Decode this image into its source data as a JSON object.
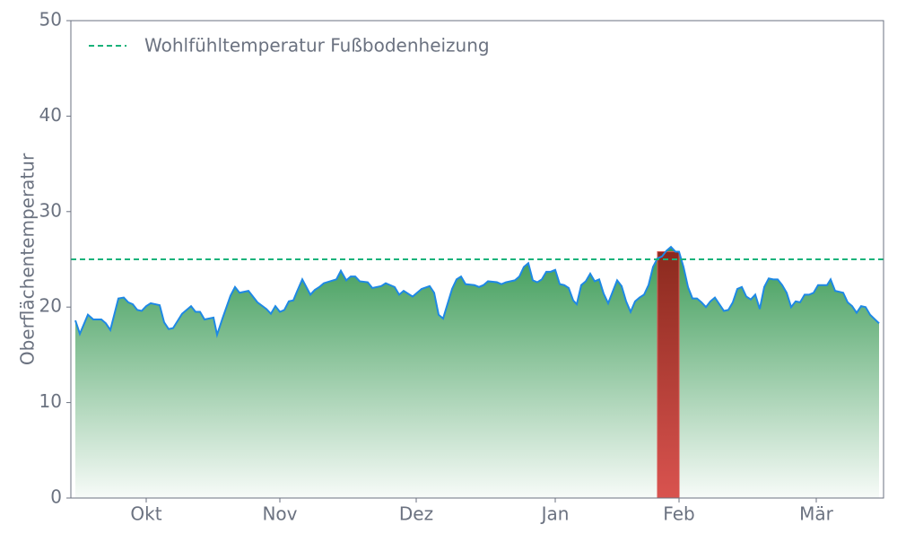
{
  "chart_data": {
    "type": "area",
    "ylabel": "Oberflächentemperatur",
    "x": [
      0,
      1,
      2.8,
      4,
      5.8,
      6.8,
      7.8,
      9.6,
      10.8,
      11.8,
      12.8,
      13.8,
      14.8,
      15.8,
      16.8,
      18.8,
      19.8,
      20.8,
      21.8,
      23.8,
      25.8,
      26.8,
      27.8,
      28.8,
      30.8,
      31.6,
      32.8,
      34.6,
      35.6,
      36.6,
      38.6,
      40.6,
      42.6,
      43.6,
      44.6,
      45.6,
      46.6,
      47.6,
      48.6,
      49.4,
      50.6,
      52.4,
      53.4,
      54.4,
      55.4,
      58.2,
      59.2,
      60.4,
      61.4,
      62.4,
      63.4,
      65.2,
      66.2,
      68.2,
      69.2,
      71.2,
      72.2,
      73.2,
      75.2,
      77.2,
      79,
      80,
      81,
      82,
      84,
      85,
      86,
      87,
      89,
      90,
      91,
      92,
      94,
      95,
      96,
      98,
      99,
      100,
      101,
      102,
      103,
      104,
      105,
      106,
      107,
      108,
      109,
      110,
      111,
      111.8,
      112.8,
      113.8,
      114.8,
      115.8,
      116.8,
      117.8,
      118.8,
      119.8,
      120.8,
      121.8,
      122.8,
      123.8,
      124.8,
      125.8,
      126.8,
      127.8,
      128.8,
      129.8,
      130.8,
      131.8,
      132.8,
      133.8,
      134.6,
      135.6,
      136.6,
      137.6,
      138.6,
      139.6,
      140.6,
      141.6,
      142.6,
      143.6,
      144.6,
      145.6,
      146.6,
      147.6,
      148.6,
      149.6,
      150.6,
      151.6,
      152.6,
      153.6,
      154.6,
      155.6,
      156.6,
      157.6,
      158.6,
      159.6,
      160.6,
      161.6,
      162.6,
      163.6,
      164.6,
      165.6,
      167.6,
      168.4,
      169.4,
      171.2,
      172.2,
      173.2,
      174.2,
      175.2,
      176.2,
      177.2,
      179.2
    ],
    "values": [
      18.6,
      17.2,
      19.2,
      18.7,
      18.7,
      18.3,
      17.6,
      20.9,
      21.0,
      20.5,
      20.3,
      19.7,
      19.6,
      20.1,
      20.4,
      20.2,
      18.4,
      17.7,
      17.8,
      19.3,
      20.1,
      19.5,
      19.5,
      18.7,
      18.9,
      17.1,
      18.8,
      21.2,
      22.1,
      21.5,
      21.7,
      20.5,
      19.8,
      19.3,
      20.1,
      19.5,
      19.7,
      20.6,
      20.7,
      21.6,
      22.9,
      21.3,
      21.8,
      22.1,
      22.5,
      22.9,
      23.8,
      22.8,
      23.2,
      23.2,
      22.7,
      22.6,
      22.0,
      22.2,
      22.5,
      22.1,
      21.3,
      21.7,
      21.1,
      21.9,
      22.2,
      21.5,
      19.2,
      18.8,
      21.9,
      22.9,
      23.2,
      22.4,
      22.3,
      22.1,
      22.3,
      22.7,
      22.6,
      22.4,
      22.6,
      22.8,
      23.2,
      24.2,
      24.6,
      22.8,
      22.6,
      22.9,
      23.7,
      23.7,
      23.9,
      22.4,
      22.3,
      22.0,
      20.7,
      20.3,
      22.3,
      22.7,
      23.5,
      22.7,
      22.9,
      21.4,
      20.4,
      21.6,
      22.8,
      22.2,
      20.6,
      19.5,
      20.6,
      21.0,
      21.3,
      22.3,
      24.2,
      25.1,
      25.3,
      25.9,
      26.3,
      25.8,
      25.8,
      24.2,
      22.1,
      20.9,
      20.9,
      20.5,
      20.0,
      20.6,
      21.0,
      20.3,
      19.6,
      19.7,
      20.5,
      21.9,
      22.1,
      21.1,
      20.8,
      21.3,
      19.8,
      22.1,
      23.0,
      22.9,
      22.9,
      22.3,
      21.5,
      20.0,
      20.6,
      20.5,
      21.3,
      21.3,
      21.5,
      22.3,
      22.3,
      22.9,
      21.7,
      21.5,
      20.5,
      20.1,
      19.4,
      20.1,
      20.0,
      19.2,
      18.3
    ],
    "color": "#1e88e5",
    "fill_color": "#3a9a55",
    "highlight": {
      "x": [
        129.8,
        134.6
      ],
      "value": 25.8,
      "color": "#d9534f"
    },
    "reference_line": {
      "value": 25,
      "name": "Wohlfühltemperatur Fußbodenheizung",
      "color": "#19b27a"
    },
    "legend": "upper left",
    "xlim": [
      -1,
      180.2
    ],
    "xticks": [
      {
        "value": 15.8,
        "label": "Okt"
      },
      {
        "value": 45.6,
        "label": "Nov"
      },
      {
        "value": 76,
        "label": "Dez"
      },
      {
        "value": 107,
        "label": "Jan"
      },
      {
        "value": 134.6,
        "label": "Feb"
      },
      {
        "value": 165.2,
        "label": "Mär"
      }
    ],
    "ylim": [
      0,
      50
    ],
    "yticks": [
      0,
      10,
      20,
      30,
      40,
      50
    ]
  }
}
